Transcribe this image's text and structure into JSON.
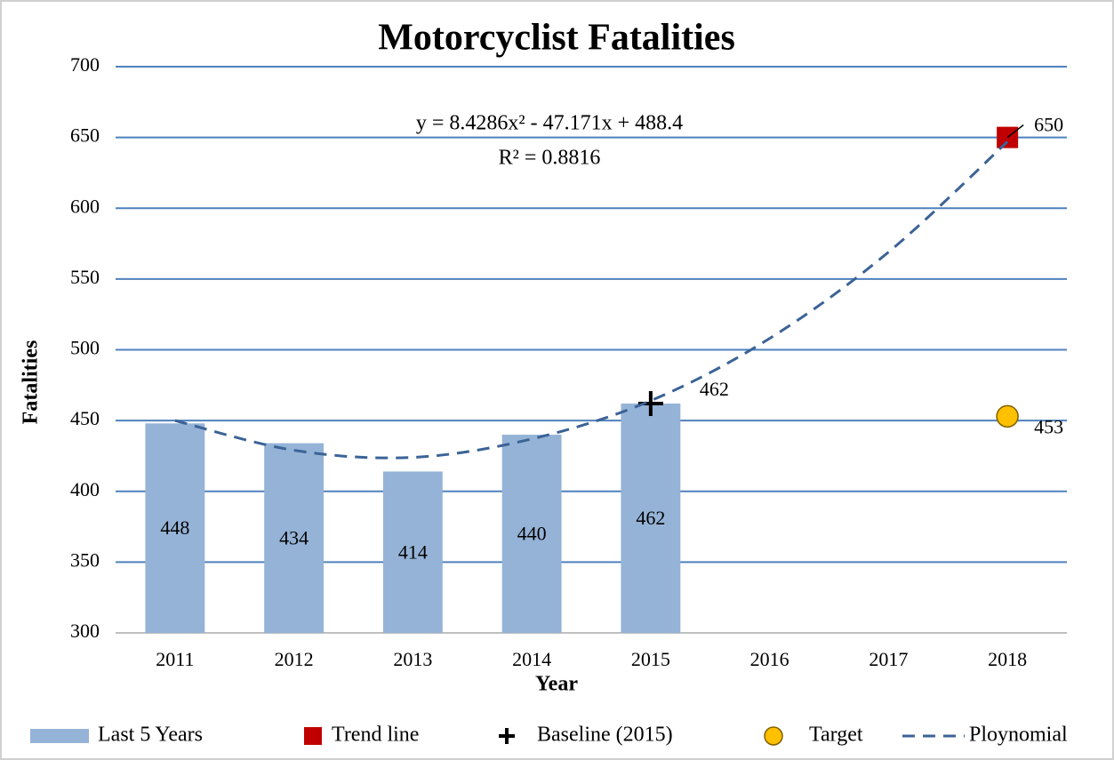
{
  "chart_data": {
    "type": "bar",
    "title": "Motorcyclist Fatalities",
    "xlabel": "Year",
    "ylabel": "Fatalities",
    "annotations": [
      "y = 8.4286x² - 47.171x + 488.4",
      "R² = 0.8816"
    ],
    "categories": [
      "2011",
      "2012",
      "2013",
      "2014",
      "2015",
      "2016",
      "2017",
      "2018"
    ],
    "series": [
      {
        "name": "Last 5 Years",
        "kind": "bar",
        "color": "#95b3d7",
        "values": [
          448,
          434,
          414,
          440,
          462,
          null,
          null,
          null
        ]
      },
      {
        "name": "Trend line",
        "kind": "square",
        "color": "#c00000",
        "values": [
          null,
          null,
          null,
          null,
          null,
          null,
          null,
          650
        ]
      },
      {
        "name": "Baseline (2015)",
        "kind": "plus",
        "color": "#000000",
        "values": [
          null,
          null,
          null,
          null,
          462,
          null,
          null,
          null
        ]
      },
      {
        "name": "Target",
        "kind": "circle",
        "color": "#ffc000",
        "values": [
          null,
          null,
          null,
          null,
          null,
          null,
          null,
          453
        ]
      },
      {
        "name": "Ploynomial",
        "kind": "dashed-line",
        "color": "#3b6396",
        "values": [
          450,
          429,
          424,
          437,
          464,
          508,
          569,
          647
        ]
      }
    ],
    "ylim": [
      300,
      700
    ],
    "yticks": [
      300,
      350,
      400,
      450,
      500,
      550,
      600,
      650,
      700
    ],
    "grid": true,
    "legend": "bottom"
  }
}
